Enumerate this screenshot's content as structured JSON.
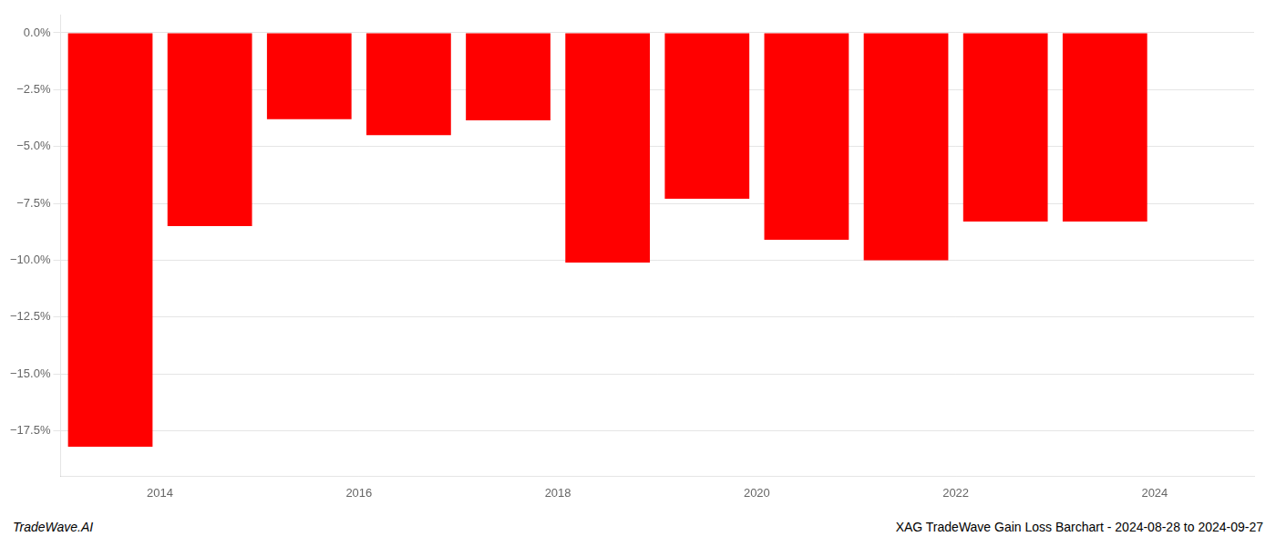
{
  "chart_data": {
    "type": "bar",
    "x": [
      2013.5,
      2014.5,
      2015.5,
      2016.5,
      2017.5,
      2018.5,
      2019.5,
      2020.5,
      2021.5,
      2022.5,
      2023.5
    ],
    "values": [
      -18.2,
      -8.5,
      -3.8,
      -4.5,
      -3.85,
      -10.1,
      -7.3,
      -9.1,
      -10.0,
      -8.3,
      -8.3
    ],
    "color": "#FF0000",
    "xlim": [
      2013.0,
      2025.0
    ],
    "xticks": [
      2014,
      2016,
      2018,
      2020,
      2022,
      2024
    ],
    "ylim": [
      -19.5,
      0.8
    ],
    "yticks": [
      {
        "value": 0.0,
        "label": "0.0%"
      },
      {
        "value": -2.5,
        "label": "−2.5%"
      },
      {
        "value": -5.0,
        "label": "−5.0%"
      },
      {
        "value": -7.5,
        "label": "−7.5%"
      },
      {
        "value": -10.0,
        "label": "−10.0%"
      },
      {
        "value": -12.5,
        "label": "−12.5%"
      },
      {
        "value": -15.0,
        "label": "−15.0%"
      },
      {
        "value": -17.5,
        "label": "−17.5%"
      }
    ],
    "grid": true,
    "annotations": [
      "TradeWave.AI",
      "XAG TradeWave Gain Loss Barchart - 2024-08-28 to 2024-09-27"
    ]
  }
}
